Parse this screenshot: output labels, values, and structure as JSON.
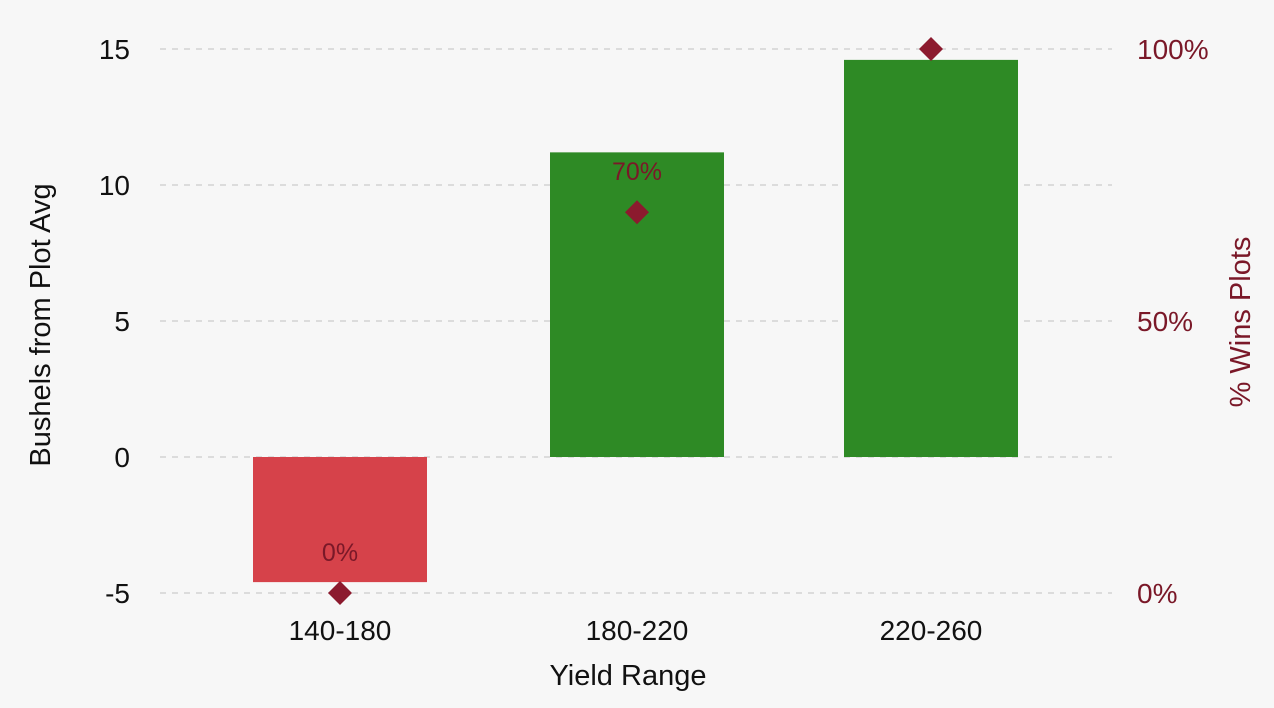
{
  "colors": {
    "positive_bar": "#2e8a25",
    "negative_bar": "#d6424a",
    "marker": "#8c1a2e",
    "right_axis_text": "#7a1828",
    "grid": "#d4d4d4",
    "background": "#f7f7f7"
  },
  "chart_data": {
    "type": "bar",
    "title": "",
    "xlabel": "Yield Range",
    "ylabel": "Bushels from Plot Avg",
    "y2label": "% Wins Plots",
    "categories": [
      "140-180",
      "180-220",
      "220-260"
    ],
    "series": [
      {
        "name": "Bushels from Plot Avg",
        "type": "bar",
        "axis": "left",
        "values": [
          -4.6,
          11.2,
          14.6
        ]
      },
      {
        "name": "% Wins Plots",
        "type": "scatter",
        "marker": "diamond",
        "axis": "right",
        "values": [
          0,
          70,
          100
        ],
        "data_labels": [
          "0%",
          "70%",
          ""
        ]
      }
    ],
    "ylim": [
      -5,
      15
    ],
    "yticks": [
      -5,
      0,
      5,
      10,
      15
    ],
    "y2lim": [
      0,
      100
    ],
    "y2ticks": [
      0,
      50,
      100
    ],
    "y2tick_labels": [
      "0%",
      "50%",
      "100%"
    ],
    "grid": true,
    "legend": "none"
  }
}
